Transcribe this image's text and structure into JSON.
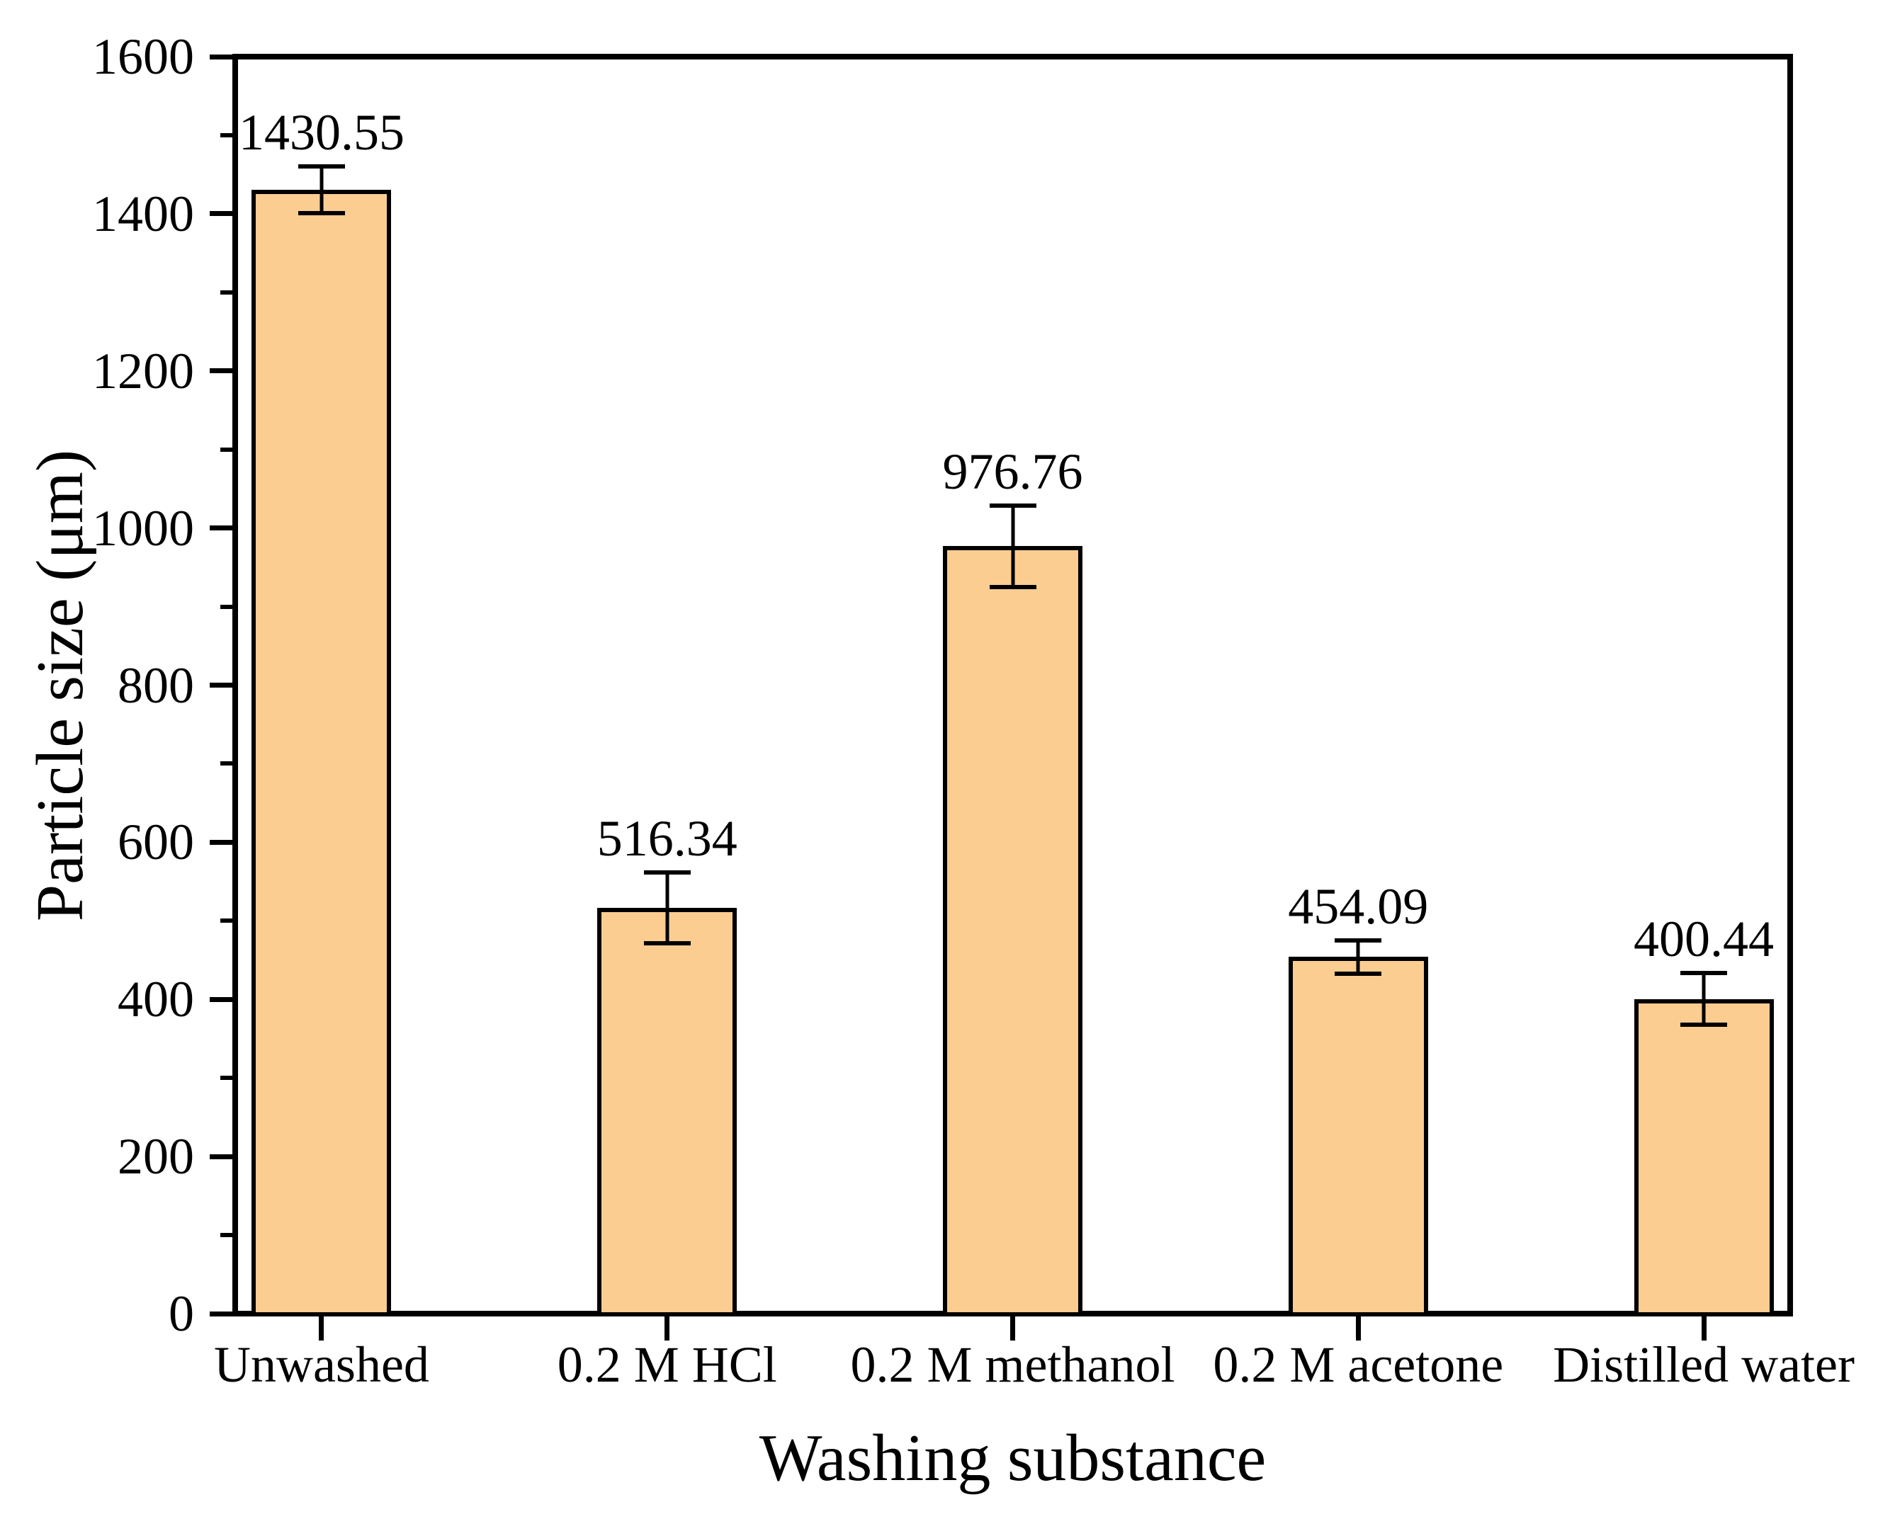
{
  "chart_data": {
    "type": "bar",
    "title": "",
    "categories": [
      "Unwashed",
      "0.2 M HCl",
      "0.2 M methanol",
      "0.2 M acetone",
      "Distilled water"
    ],
    "values": [
      1430.55,
      516.34,
      976.76,
      454.09,
      400.44
    ],
    "value_labels": [
      "1430.55",
      "516.34",
      "976.76",
      "454.09",
      "400.44"
    ],
    "errors": [
      30,
      45,
      52,
      21,
      33
    ],
    "xlabel": "Washing substance",
    "ylabel": "Particle size (μm)",
    "ylim": [
      0,
      1600
    ],
    "y_major_ticks": [
      0,
      200,
      400,
      600,
      800,
      1000,
      1200,
      1400,
      1600
    ],
    "y_minor_ticks": [
      100,
      300,
      500,
      700,
      900,
      1100,
      1300,
      1500
    ],
    "grid": false,
    "legend": null,
    "bar_color": "#FBCD91",
    "bar_border_color": "#000000",
    "error_bar_color": "#000000",
    "axis_color": "#000000",
    "text_color": "#000000"
  }
}
